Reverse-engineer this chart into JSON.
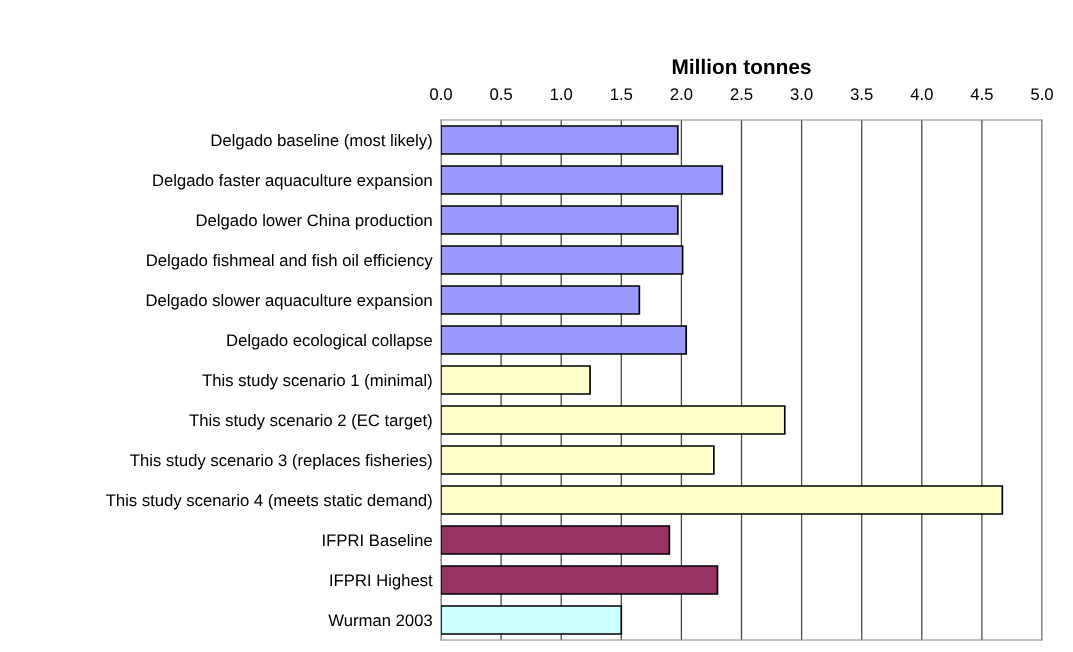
{
  "chart_data": {
    "type": "bar",
    "orientation": "horizontal",
    "xlabel": "Million tonnes",
    "categories": [
      "Delgado baseline (most likely)",
      "Delgado faster aquaculture expansion",
      "Delgado lower China production",
      "Delgado fishmeal and fish oil efficiency",
      "Delgado slower aquaculture expansion",
      "Delgado ecological collapse",
      "This study scenario 1 (minimal)",
      "This study scenario 2 (EC target)",
      "This study scenario 3 (replaces fisheries)",
      "This study scenario 4 (meets static demand)",
      "IFPRI Baseline",
      "IFPRI Highest",
      "Wurman 2003"
    ],
    "values": [
      1.97,
      2.34,
      1.97,
      2.01,
      1.65,
      2.04,
      1.24,
      2.86,
      2.27,
      4.67,
      1.9,
      2.3,
      1.5
    ],
    "colors": [
      "#9999ff",
      "#9999ff",
      "#9999ff",
      "#9999ff",
      "#9999ff",
      "#9999ff",
      "#ffffcc",
      "#ffffcc",
      "#ffffcc",
      "#ffffcc",
      "#993366",
      "#993366",
      "#ccffff"
    ],
    "xlim": [
      0,
      5
    ],
    "xticks": [
      {
        "value": 0,
        "label": "0.0"
      },
      {
        "value": 0.5,
        "label": "0.5"
      },
      {
        "value": 1,
        "label": "1.0"
      },
      {
        "value": 1.5,
        "label": "1.5"
      },
      {
        "value": 2,
        "label": "2.0"
      },
      {
        "value": 2.5,
        "label": "2.5"
      },
      {
        "value": 3,
        "label": "3.0"
      },
      {
        "value": 3.5,
        "label": "3.5"
      },
      {
        "value": 4,
        "label": "4.0"
      },
      {
        "value": 4.5,
        "label": "4.5"
      },
      {
        "value": 5,
        "label": "5.0"
      }
    ],
    "grid": "x"
  }
}
